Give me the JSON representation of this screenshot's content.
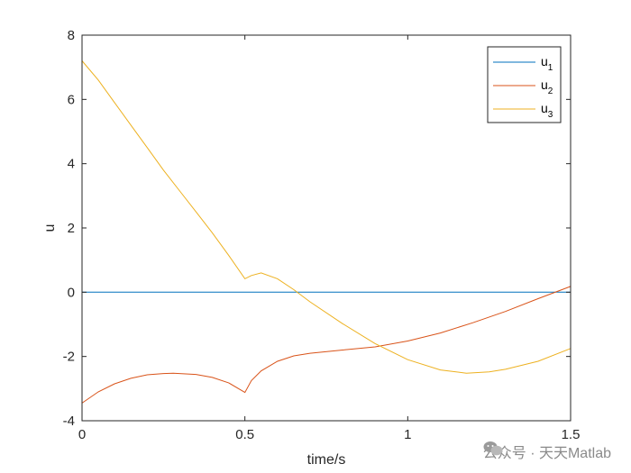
{
  "chart_data": {
    "type": "line",
    "xlabel": "time/s",
    "ylabel": "u",
    "xlim": [
      0,
      1.5
    ],
    "ylim": [
      -4,
      8
    ],
    "xticks": [
      0,
      0.5,
      1,
      1.5
    ],
    "xtick_labels": [
      "0",
      "0.5",
      "1",
      "1.5"
    ],
    "yticks": [
      -4,
      -2,
      0,
      2,
      4,
      6,
      8
    ],
    "ytick_labels": [
      "-4",
      "-2",
      "0",
      "2",
      "4",
      "6",
      "8"
    ],
    "grid": false,
    "legend_position": "top-right",
    "series": [
      {
        "name": "u",
        "subscript": "1",
        "color": "#0072BD",
        "x": [
          0,
          0.25,
          0.5,
          0.75,
          1.0,
          1.25,
          1.5
        ],
        "y": [
          0,
          0,
          0,
          0,
          0,
          0,
          0
        ]
      },
      {
        "name": "u",
        "subscript": "2",
        "color": "#D95319",
        "x": [
          0,
          0.05,
          0.1,
          0.15,
          0.2,
          0.25,
          0.28,
          0.35,
          0.4,
          0.45,
          0.5,
          0.52,
          0.55,
          0.6,
          0.65,
          0.7,
          0.8,
          0.9,
          1.0,
          1.1,
          1.2,
          1.3,
          1.4,
          1.5
        ],
        "y": [
          -3.45,
          -3.1,
          -2.85,
          -2.68,
          -2.57,
          -2.53,
          -2.52,
          -2.56,
          -2.65,
          -2.82,
          -3.12,
          -2.75,
          -2.45,
          -2.15,
          -1.98,
          -1.9,
          -1.8,
          -1.7,
          -1.52,
          -1.27,
          -0.95,
          -0.6,
          -0.2,
          0.18
        ]
      },
      {
        "name": "u",
        "subscript": "3",
        "color": "#EDB120",
        "x": [
          0,
          0.05,
          0.1,
          0.15,
          0.2,
          0.25,
          0.3,
          0.35,
          0.4,
          0.45,
          0.5,
          0.52,
          0.55,
          0.6,
          0.65,
          0.7,
          0.8,
          0.9,
          1.0,
          1.1,
          1.18,
          1.25,
          1.3,
          1.4,
          1.5
        ],
        "y": [
          7.2,
          6.6,
          5.9,
          5.2,
          4.5,
          3.8,
          3.15,
          2.5,
          1.85,
          1.15,
          0.42,
          0.52,
          0.6,
          0.42,
          0.08,
          -0.3,
          -0.98,
          -1.6,
          -2.1,
          -2.42,
          -2.52,
          -2.48,
          -2.4,
          -2.15,
          -1.75
        ]
      }
    ]
  },
  "watermark": {
    "text": "公众号 · 天天Matlab"
  }
}
